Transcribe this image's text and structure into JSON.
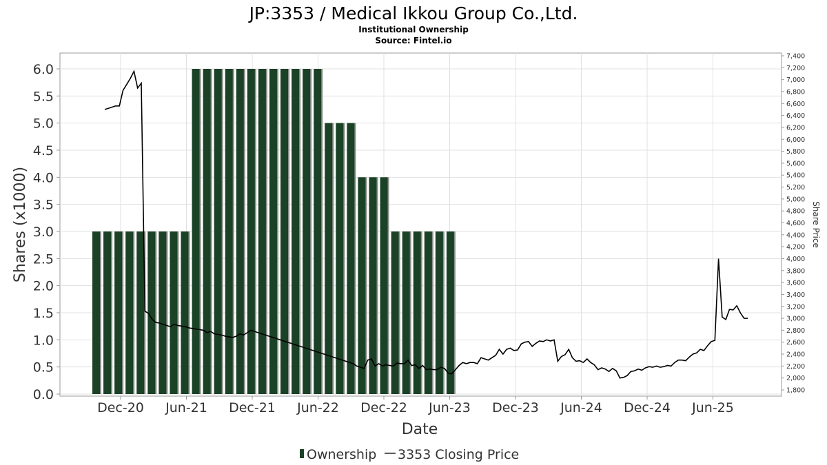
{
  "header": {
    "title": "JP:3353 / Medical Ikkou Group Co.,Ltd.",
    "subtitle": "Institutional Ownership",
    "source": "Source: Fintel.io"
  },
  "chart_data": {
    "type": "bar",
    "xlabel": "Date",
    "ylabel": "Shares (x1000)",
    "y2label": "Share Price",
    "ylim": [
      0,
      6.0
    ],
    "y2lim": [
      1700,
      7400
    ],
    "yticks": [
      "0.0",
      "0.5",
      "1.0",
      "1.5",
      "2.0",
      "2.5",
      "3.0",
      "3.5",
      "4.0",
      "4.5",
      "5.0",
      "5.5",
      "6.0"
    ],
    "y2ticks": [
      "1,800",
      "2,000",
      "2,200",
      "2,400",
      "2,600",
      "2,800",
      "3,000",
      "3,200",
      "3,400",
      "3,600",
      "3,800",
      "4,000",
      "4,200",
      "4,400",
      "4,600",
      "4,800",
      "5,000",
      "5,200",
      "5,400",
      "5,600",
      "5,800",
      "6,000",
      "6,200",
      "6,400",
      "6,600",
      "6,800",
      "7,000",
      "7,200",
      "7,400"
    ],
    "xticks": [
      "Dec-20",
      "Jun-21",
      "Dec-21",
      "Jun-22",
      "Dec-22",
      "Jun-23",
      "Dec-23",
      "Jun-24",
      "Dec-24",
      "Jun-25"
    ],
    "legend_position": "bottom-center",
    "grid": true,
    "colors": {
      "bar": "#1b4226",
      "bar_shadow": "#8a8f8b",
      "line": "#000000",
      "grid": "#e0e0e0"
    },
    "series": [
      {
        "name": "Ownership",
        "type": "bar",
        "values": [
          3.0,
          3.0,
          3.0,
          3.0,
          3.0,
          3.0,
          3.0,
          3.0,
          3.0,
          6.0,
          6.0,
          6.0,
          6.0,
          6.0,
          6.0,
          6.0,
          6.0,
          6.0,
          6.0,
          6.0,
          6.0,
          5.0,
          5.0,
          5.0,
          4.0,
          4.0,
          4.0,
          3.0,
          3.0,
          3.0,
          3.0,
          3.0,
          3.0
        ]
      },
      {
        "name": "3353 Closing Price",
        "type": "line",
        "axis": "right",
        "values": [
          6500,
          6520,
          6540,
          6560,
          6560,
          6820,
          6920,
          7020,
          7140,
          6860,
          6940,
          3120,
          3080,
          2980,
          2930,
          2920,
          2900,
          2880,
          2860,
          2900,
          2880,
          2870,
          2860,
          2840,
          2830,
          2820,
          2810,
          2800,
          2760,
          2780,
          2740,
          2730,
          2720,
          2700,
          2690,
          2680,
          2700,
          2740,
          2720,
          2760,
          2800,
          2780,
          2760,
          2740,
          2720,
          2700,
          2680,
          2660,
          2640,
          2620,
          2600,
          2580,
          2560,
          2540,
          2520,
          2500,
          2480,
          2460,
          2440,
          2420,
          2400,
          2380,
          2360,
          2340,
          2320,
          2300,
          2280,
          2260,
          2240,
          2200,
          2180,
          2160,
          2300,
          2320,
          2200,
          2240,
          2200,
          2220,
          2210,
          2200,
          2250,
          2240,
          2240,
          2300,
          2210,
          2220,
          2160,
          2210,
          2140,
          2150,
          2140,
          2140,
          2180,
          2160,
          2080,
          2070,
          2140,
          2210,
          2260,
          2240,
          2260,
          2260,
          2240,
          2340,
          2320,
          2300,
          2340,
          2380,
          2480,
          2400,
          2480,
          2500,
          2460,
          2470,
          2570,
          2600,
          2610,
          2530,
          2580,
          2620,
          2610,
          2640,
          2620,
          2640,
          2280,
          2360,
          2390,
          2480,
          2340,
          2280,
          2290,
          2260,
          2320,
          2260,
          2220,
          2140,
          2170,
          2150,
          2110,
          2160,
          2120,
          2000,
          2010,
          2040,
          2110,
          2120,
          2150,
          2130,
          2170,
          2190,
          2180,
          2200,
          2180,
          2190,
          2210,
          2200,
          2260,
          2300,
          2300,
          2290,
          2350,
          2400,
          2420,
          2480,
          2460,
          2540,
          2610,
          2630,
          4000,
          3020,
          2980,
          3150,
          3140,
          3210,
          3090,
          3000,
          3000
        ]
      }
    ]
  },
  "legend": {
    "items": [
      {
        "name": "Ownership"
      },
      {
        "name": "3353 Closing Price"
      }
    ]
  }
}
